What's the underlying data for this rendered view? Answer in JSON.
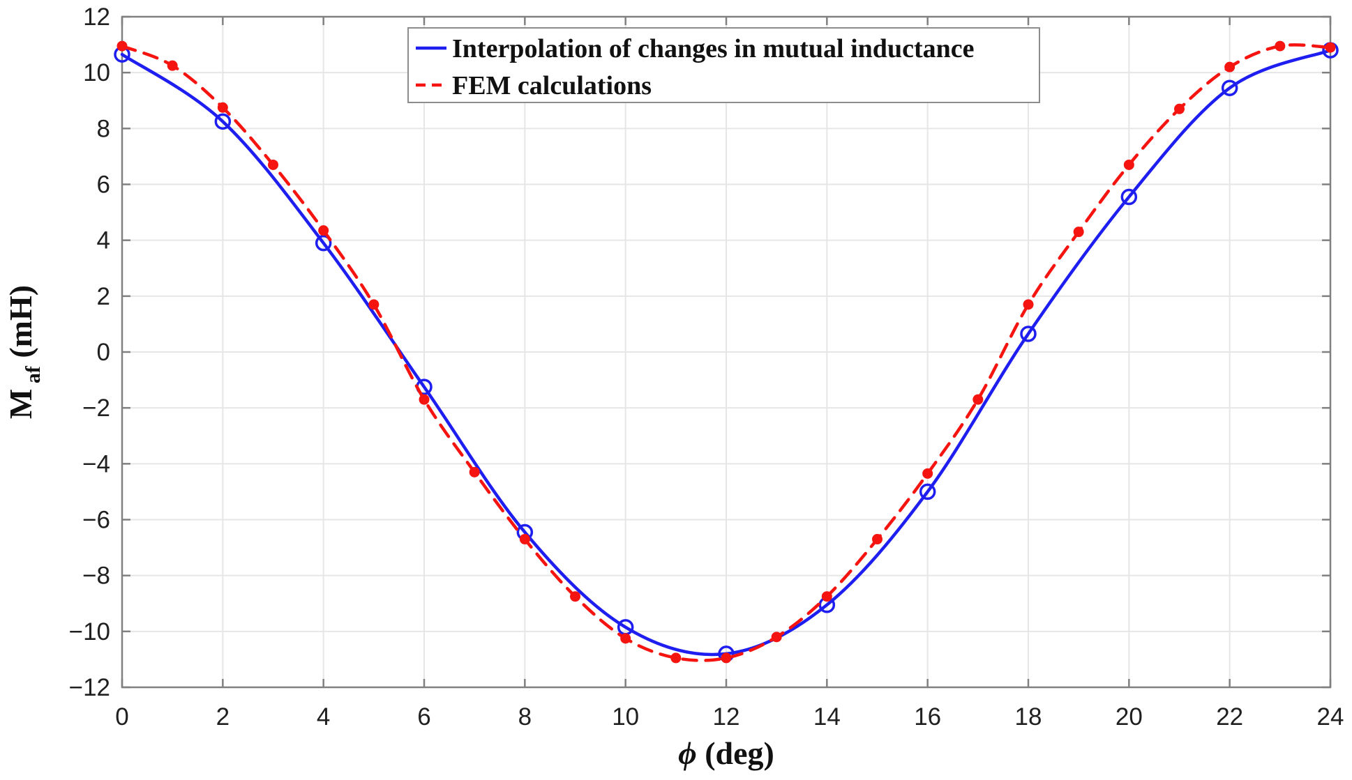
{
  "figure": {
    "background": "#ffffff",
    "axis_color": "#808080",
    "grid_color": "#e6e6e6",
    "tick_label_color": "#202020"
  },
  "chart_data": {
    "type": "line",
    "title": "",
    "xlabel": {
      "symbol": "ϕ",
      "unit": "(deg)"
    },
    "ylabel": {
      "base": "M",
      "subscript": "af",
      "unit": "(mH)"
    },
    "xlim": [
      0,
      24
    ],
    "ylim": [
      -12,
      12
    ],
    "xticks": [
      0,
      2,
      4,
      6,
      8,
      10,
      12,
      14,
      16,
      18,
      20,
      22,
      24
    ],
    "yticks": [
      -12,
      -10,
      -8,
      -6,
      -4,
      -2,
      0,
      2,
      4,
      6,
      8,
      10,
      12
    ],
    "grid": true,
    "legend": {
      "position": "top-center",
      "border_color": "#8c8c8c",
      "background": "#ffffff",
      "entries": [
        {
          "label": "Interpolation of changes in mutual inductance",
          "color": "#1e1ef0",
          "style": "solid",
          "marker": "open-circle"
        },
        {
          "label": "FEM calculations",
          "color": "#f5140f",
          "style": "dashed",
          "marker": "filled-dot"
        }
      ]
    },
    "series": [
      {
        "name": "Interpolation of changes in mutual inductance",
        "color": "#1e1ef0",
        "line": "solid",
        "marker": "open-circle",
        "x": [
          0,
          2,
          4,
          6,
          8,
          10,
          12,
          14,
          16,
          18,
          20,
          22,
          24
        ],
        "y": [
          10.65,
          8.25,
          3.9,
          -1.25,
          -6.45,
          -9.85,
          -10.8,
          -9.05,
          -5.0,
          0.65,
          5.55,
          9.45,
          10.8
        ]
      },
      {
        "name": "FEM calculations",
        "color": "#f5140f",
        "line": "dashed",
        "marker": "filled-dot",
        "x": [
          0,
          1,
          2,
          3,
          4,
          5,
          6,
          7,
          8,
          9,
          10,
          11,
          12,
          13,
          14,
          15,
          16,
          17,
          18,
          19,
          20,
          21,
          22,
          23,
          24
        ],
        "y": [
          10.95,
          10.25,
          8.75,
          6.7,
          4.35,
          1.7,
          -1.7,
          -4.3,
          -6.7,
          -8.75,
          -10.25,
          -10.95,
          -10.95,
          -10.2,
          -8.75,
          -6.7,
          -4.35,
          -1.7,
          1.7,
          4.3,
          6.7,
          8.7,
          10.2,
          10.95,
          10.9
        ]
      }
    ]
  }
}
